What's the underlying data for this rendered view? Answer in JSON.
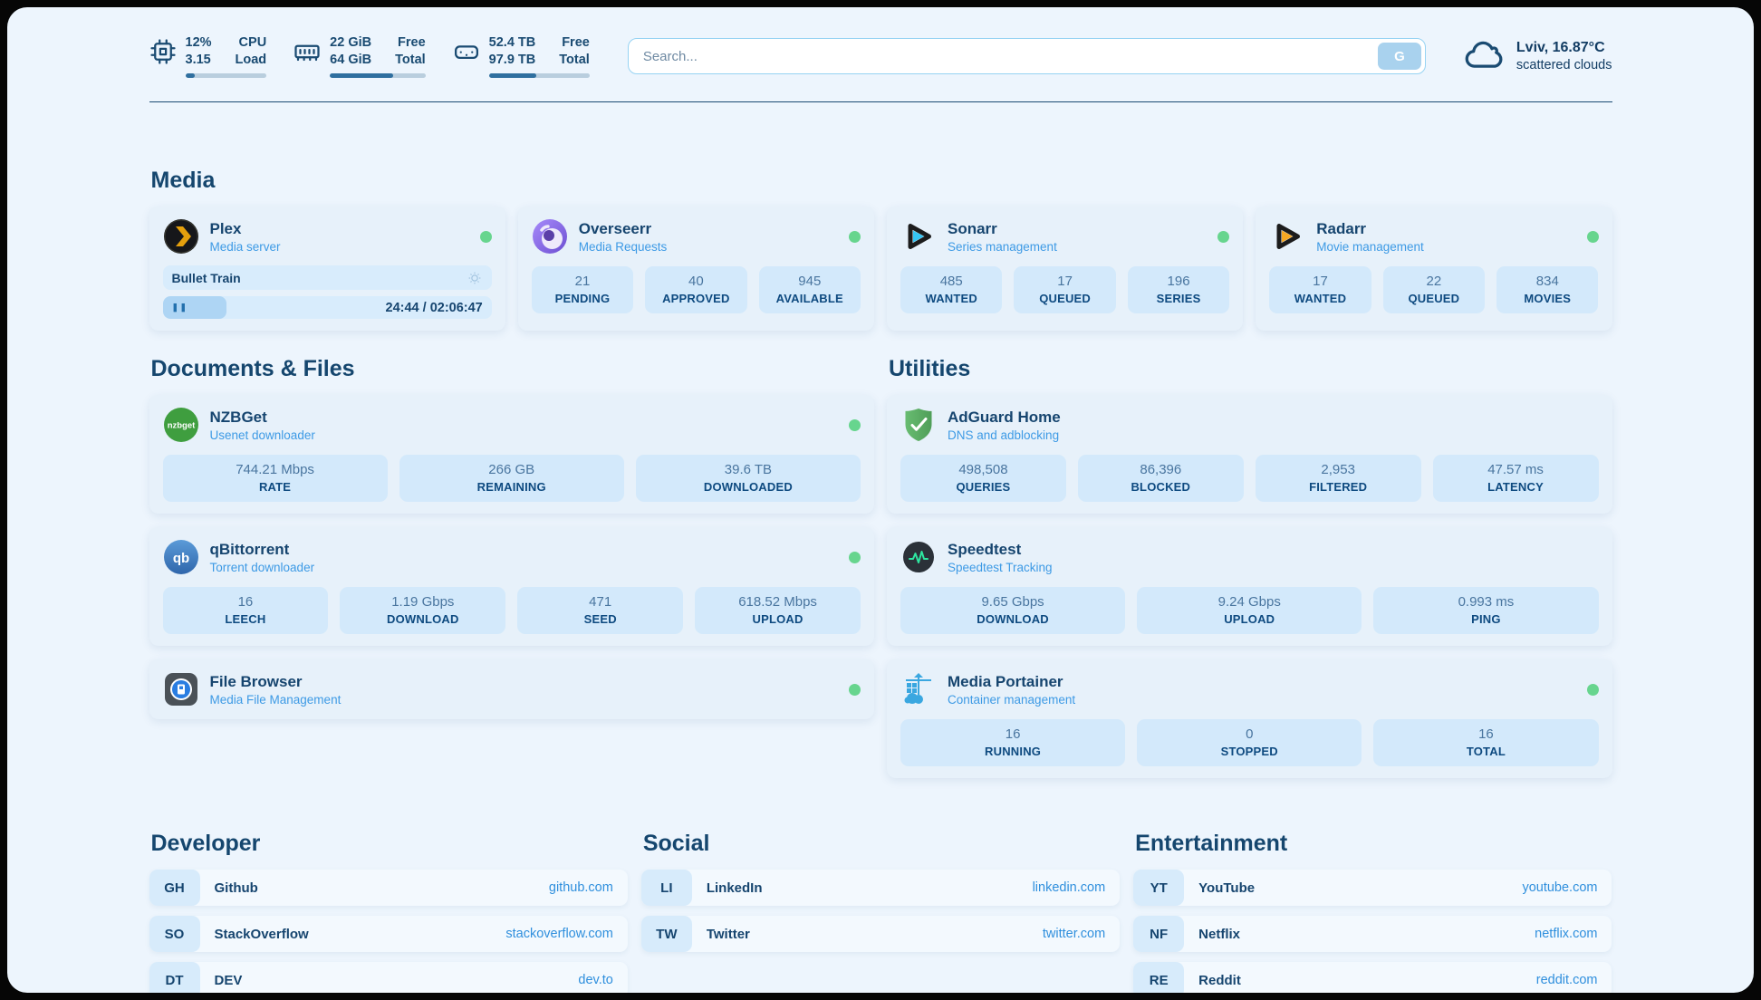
{
  "header": {
    "system_stats": [
      {
        "icon": "cpu-icon",
        "value_top": "12%",
        "value_bottom": "3.15",
        "label_top": "CPU",
        "label_bottom": "Load",
        "progress_percent": 12
      },
      {
        "icon": "ram-icon",
        "value_top": "22 GiB",
        "value_bottom": "64 GiB",
        "label_top": "Free",
        "label_bottom": "Total",
        "progress_percent": 66
      },
      {
        "icon": "disk-icon",
        "value_top": "52.4 TB",
        "value_bottom": "97.9 TB",
        "label_top": "Free",
        "label_bottom": "Total",
        "progress_percent": 47
      }
    ],
    "search": {
      "placeholder": "Search...",
      "button_label": "G"
    },
    "weather": {
      "icon": "cloud-icon",
      "location": "Lviv, 16.87°C",
      "condition": "scattered clouds"
    }
  },
  "media": {
    "title": "Media",
    "plex": {
      "name": "Plex",
      "subtitle": "Media server",
      "online": true,
      "now_playing": {
        "title": "Bullet Train",
        "time_display": "24:44 / 02:06:47",
        "progress_percent": 19.5
      }
    },
    "overseerr": {
      "name": "Overseerr",
      "subtitle": "Media Requests",
      "online": true,
      "stats": [
        {
          "value": "21",
          "label": "PENDING"
        },
        {
          "value": "40",
          "label": "APPROVED"
        },
        {
          "value": "945",
          "label": "AVAILABLE"
        }
      ]
    },
    "sonarr": {
      "name": "Sonarr",
      "subtitle": "Series management",
      "online": true,
      "stats": [
        {
          "value": "485",
          "label": "WANTED"
        },
        {
          "value": "17",
          "label": "QUEUED"
        },
        {
          "value": "196",
          "label": "SERIES"
        }
      ]
    },
    "radarr": {
      "name": "Radarr",
      "subtitle": "Movie management",
      "online": true,
      "stats": [
        {
          "value": "17",
          "label": "WANTED"
        },
        {
          "value": "22",
          "label": "QUEUED"
        },
        {
          "value": "834",
          "label": "MOVIES"
        }
      ]
    }
  },
  "documents": {
    "title": "Documents & Files",
    "nzbget": {
      "name": "NZBGet",
      "subtitle": "Usenet downloader",
      "online": true,
      "stats": [
        {
          "value": "744.21 Mbps",
          "label": "RATE"
        },
        {
          "value": "266 GB",
          "label": "REMAINING"
        },
        {
          "value": "39.6 TB",
          "label": "DOWNLOADED"
        }
      ]
    },
    "qbittorrent": {
      "name": "qBittorrent",
      "subtitle": "Torrent downloader",
      "online": true,
      "stats": [
        {
          "value": "16",
          "label": "LEECH"
        },
        {
          "value": "1.19 Gbps",
          "label": "DOWNLOAD"
        },
        {
          "value": "471",
          "label": "SEED"
        },
        {
          "value": "618.52 Mbps",
          "label": "UPLOAD"
        }
      ]
    },
    "filebrowser": {
      "name": "File Browser",
      "subtitle": "Media File Management",
      "online": true
    }
  },
  "utilities": {
    "title": "Utilities",
    "adguard": {
      "name": "AdGuard Home",
      "subtitle": "DNS and adblocking",
      "online": false,
      "stats": [
        {
          "value": "498,508",
          "label": "QUERIES"
        },
        {
          "value": "86,396",
          "label": "BLOCKED"
        },
        {
          "value": "2,953",
          "label": "FILTERED"
        },
        {
          "value": "47.57 ms",
          "label": "LATENCY"
        }
      ]
    },
    "speedtest": {
      "name": "Speedtest",
      "subtitle": "Speedtest Tracking",
      "online": false,
      "stats": [
        {
          "value": "9.65 Gbps",
          "label": "DOWNLOAD"
        },
        {
          "value": "9.24 Gbps",
          "label": "UPLOAD"
        },
        {
          "value": "0.993 ms",
          "label": "PING"
        }
      ]
    },
    "portainer": {
      "name": "Media Portainer",
      "subtitle": "Container management",
      "online": true,
      "stats": [
        {
          "value": "16",
          "label": "RUNNING"
        },
        {
          "value": "0",
          "label": "STOPPED"
        },
        {
          "value": "16",
          "label": "TOTAL"
        }
      ]
    }
  },
  "bookmarks": {
    "developer": {
      "title": "Developer",
      "links": [
        {
          "abbr": "GH",
          "name": "Github",
          "url": "github.com"
        },
        {
          "abbr": "SO",
          "name": "StackOverflow",
          "url": "stackoverflow.com"
        },
        {
          "abbr": "DT",
          "name": "DEV",
          "url": "dev.to"
        }
      ]
    },
    "social": {
      "title": "Social",
      "links": [
        {
          "abbr": "LI",
          "name": "LinkedIn",
          "url": "linkedin.com"
        },
        {
          "abbr": "TW",
          "name": "Twitter",
          "url": "twitter.com"
        }
      ]
    },
    "entertainment": {
      "title": "Entertainment",
      "links": [
        {
          "abbr": "YT",
          "name": "YouTube",
          "url": "youtube.com"
        },
        {
          "abbr": "NF",
          "name": "Netflix",
          "url": "netflix.com"
        },
        {
          "abbr": "RE",
          "name": "Reddit",
          "url": "reddit.com"
        }
      ]
    }
  },
  "colors": {
    "background": "#edf5fd",
    "card": "#e7f1fa",
    "stat_box": "#d3e9fb",
    "navy": "#16456f",
    "accent_blue": "#2f8fdd",
    "status_green": "#67d58e"
  }
}
